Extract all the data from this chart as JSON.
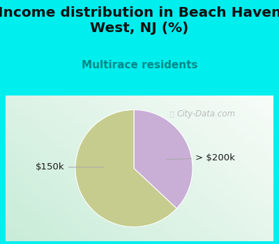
{
  "title": "Income distribution in Beach Haven\nWest, NJ (%)",
  "subtitle": "Multirace residents",
  "slices": [
    63.0,
    37.0
  ],
  "labels": [
    "$150k",
    "> $200k"
  ],
  "colors": [
    "#c5cc8e",
    "#c9aed6"
  ],
  "background_color": "#00eeee",
  "title_fontsize": 14.5,
  "subtitle_fontsize": 11,
  "label_fontsize": 9.5,
  "watermark": "City-Data.com"
}
